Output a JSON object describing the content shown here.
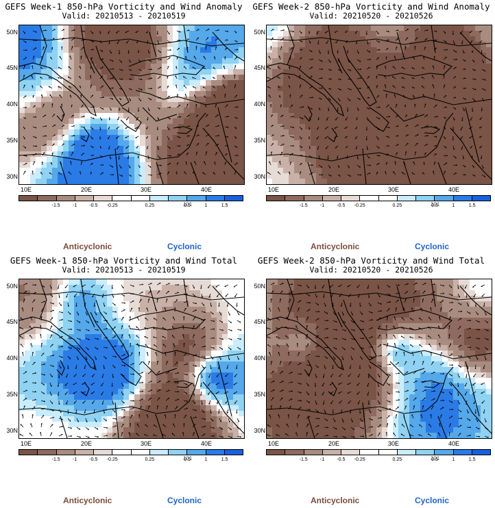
{
  "panels": [
    {
      "title": "GEFS Week-1 850-hPa Vorticity and Wind Anomaly",
      "valid": "Valid: 20210513 - 20210519",
      "seed": 3,
      "mode": "anom"
    },
    {
      "title": "GEFS Week-2 850-hPa Vorticity and Wind Anomaly",
      "valid": "Valid: 20210520 - 20210526",
      "seed": 11,
      "mode": "anom"
    },
    {
      "title": "GEFS Week-1 850-hPa Vorticity and Wind Total",
      "valid": "Valid: 20210513 - 20210519",
      "seed": 5,
      "mode": "total"
    },
    {
      "title": "GEFS Week-2 850-hPa Vorticity and Wind Total",
      "valid": "Valid: 20210520 - 20210526",
      "seed": 17,
      "mode": "total"
    }
  ],
  "lat_labels": [
    "50N",
    "45N",
    "40N",
    "35N",
    "30N"
  ],
  "lon_labels": [
    "10E",
    "20E",
    "30E",
    "40E"
  ],
  "colorbar": {
    "labels": [
      "-1.5",
      "-1",
      "-0.5",
      "-0.25",
      "0.25",
      "0.5",
      "1",
      "1.5"
    ],
    "colors": [
      "#7a5446",
      "#8e6b5e",
      "#a98c80",
      "#c9b1a7",
      "#e7dbd6",
      "#ffffff",
      "#ffffff",
      "#c9ecff",
      "#8fd2f2",
      "#55a8ea",
      "#2b7be6",
      "#1a60de"
    ],
    "tag": "101"
  },
  "legend": {
    "anticyclonic": "Anticyclonic",
    "cyclonic": "Cyclonic"
  }
}
